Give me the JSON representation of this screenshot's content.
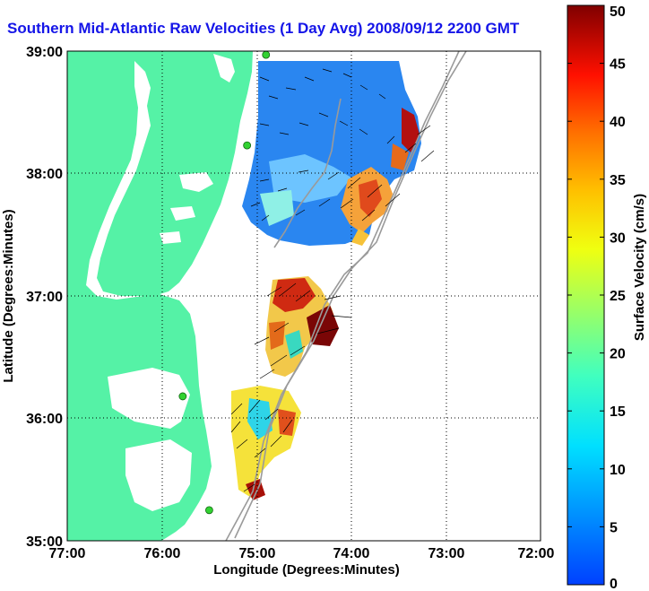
{
  "title": "Southern Mid-Atlantic Raw Velocities (1 Day Avg) 2008/09/12 2200 GMT",
  "xlabel": "Longitude (Degrees:Minutes)",
  "ylabel": "Latitude (Degrees:Minutes)",
  "x_ticks": [
    "77:00",
    "76:00",
    "75:00",
    "74:00",
    "73:00",
    "72:00"
  ],
  "y_ticks": [
    "39:00",
    "38:00",
    "37:00",
    "36:00",
    "35:00"
  ],
  "colorbar": {
    "label": "Surface Velocity (cm/s)",
    "ticks": [
      "0",
      "5",
      "10",
      "15",
      "20",
      "25",
      "30",
      "35",
      "40",
      "45",
      "50"
    ],
    "range": [
      0,
      50
    ]
  },
  "colors": {
    "land": "#55f2a6",
    "water": "#ffffff",
    "title": "#1515e8",
    "stations": "#32d232"
  },
  "map_extent": {
    "lon": [
      -77,
      -72
    ],
    "lat": [
      35,
      39
    ]
  },
  "stations": [
    {
      "lon": -74.9,
      "lat": 38.97
    },
    {
      "lon": -75.1,
      "lat": 38.23
    },
    {
      "lon": -75.78,
      "lat": 36.18
    },
    {
      "lon": -75.5,
      "lat": 35.25
    }
  ]
}
